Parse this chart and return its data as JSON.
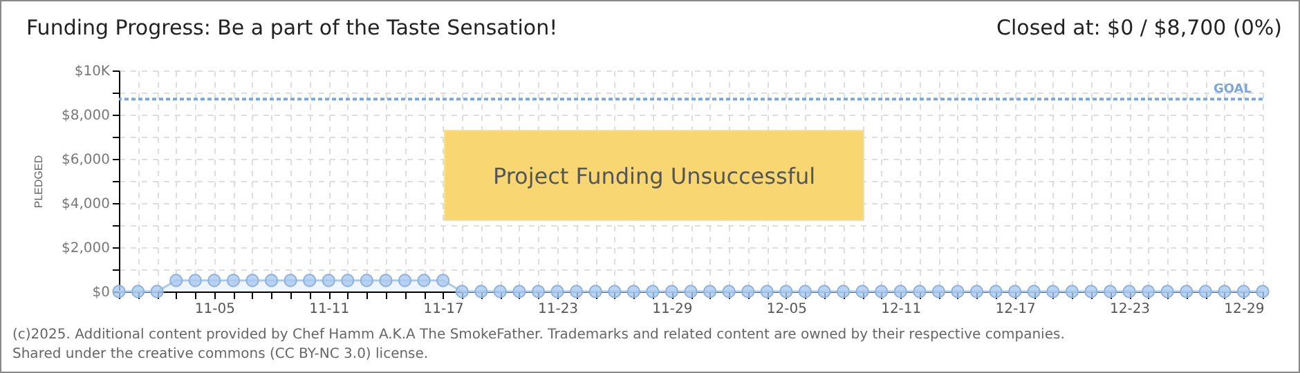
{
  "chart_data": {
    "type": "area",
    "title": "Funding Progress: Be a part of the Taste Sensation!",
    "subtitle": "Closed at:  $0 /  $8,700 (0%)",
    "ylabel": "PLEDGED",
    "annotations": [
      "Project Funding Unsuccessful",
      "(c)2025. Additional content provided by Chef Hamm A.K.A The SmokeFather. Trademarks and related content are owned by their respective companies.",
      "Shared under the creative commons (CC BY-NC 3.0) license."
    ],
    "x": [
      "--10-31",
      "--11-01",
      "--11-02",
      "--11-03",
      "--11-04",
      "--11-05",
      "--11-06",
      "--11-07",
      "--11-08",
      "--11-09",
      "--11-10",
      "--11-11",
      "--11-12",
      "--11-13",
      "--11-14",
      "--11-15",
      "--11-16",
      "--11-17",
      "--11-18",
      "--11-19",
      "--11-20",
      "--11-21",
      "--11-22",
      "--11-23",
      "--11-24",
      "--11-25",
      "--11-26",
      "--11-27",
      "--11-28",
      "--11-29",
      "--11-30",
      "--12-01",
      "--12-02",
      "--12-03",
      "--12-04",
      "--12-05",
      "--12-06",
      "--12-07",
      "--12-08",
      "--12-09",
      "--12-10",
      "--12-11",
      "--12-12",
      "--12-13",
      "--12-14",
      "--12-15",
      "--12-16",
      "--12-17",
      "--12-18",
      "--12-19",
      "--12-20",
      "--12-21",
      "--12-22",
      "--12-23",
      "--12-24",
      "--12-25",
      "--12-26",
      "--12-27",
      "--12-28",
      "--12-29",
      "--12-30"
    ],
    "series": [
      {
        "color": "#a9c9f0",
        "values": [
          0,
          0,
          0,
          500,
          500,
          500,
          500,
          500,
          500,
          500,
          500,
          500,
          500,
          500,
          500,
          500,
          500,
          500,
          0,
          0,
          0,
          0,
          0,
          0,
          0,
          0,
          0,
          0,
          0,
          0,
          0,
          0,
          0,
          0,
          0,
          0,
          0,
          0,
          0,
          0,
          0,
          0,
          0,
          0,
          0,
          0,
          0,
          0,
          0,
          0,
          0,
          0,
          0,
          0,
          0,
          0,
          0,
          0,
          0,
          0,
          0
        ]
      }
    ],
    "xlim": [
      "--10-31",
      "--12-30"
    ],
    "xticks": [
      {
        "value": "--10-31",
        "label": null
      },
      {
        "value": "--11-01",
        "label": null
      },
      {
        "value": "--11-02",
        "label": null
      },
      {
        "value": "--11-03",
        "label": null
      },
      {
        "value": "--11-04",
        "label": null
      },
      {
        "value": "--11-05",
        "label": "11-05"
      },
      {
        "value": "--11-06",
        "label": null
      },
      {
        "value": "--11-07",
        "label": null
      },
      {
        "value": "--11-08",
        "label": null
      },
      {
        "value": "--11-09",
        "label": null
      },
      {
        "value": "--11-10",
        "label": null
      },
      {
        "value": "--11-11",
        "label": "11-11"
      },
      {
        "value": "--11-12",
        "label": null
      },
      {
        "value": "--11-13",
        "label": null
      },
      {
        "value": "--11-14",
        "label": null
      },
      {
        "value": "--11-15",
        "label": null
      },
      {
        "value": "--11-16",
        "label": null
      },
      {
        "value": "--11-17",
        "label": "11-17"
      },
      {
        "value": "--11-18",
        "label": null
      },
      {
        "value": "--11-19",
        "label": null
      },
      {
        "value": "--11-20",
        "label": null
      },
      {
        "value": "--11-21",
        "label": null
      },
      {
        "value": "--11-22",
        "label": null
      },
      {
        "value": "--11-23",
        "label": "11-23"
      },
      {
        "value": "--11-24",
        "label": null
      },
      {
        "value": "--11-25",
        "label": null
      },
      {
        "value": "--11-26",
        "label": null
      },
      {
        "value": "--11-27",
        "label": null
      },
      {
        "value": "--11-28",
        "label": null
      },
      {
        "value": "--11-29",
        "label": "11-29"
      },
      {
        "value": "--11-30",
        "label": null
      },
      {
        "value": "--12-01",
        "label": null
      },
      {
        "value": "--12-02",
        "label": null
      },
      {
        "value": "--12-03",
        "label": null
      },
      {
        "value": "--12-04",
        "label": null
      },
      {
        "value": "--12-05",
        "label": "12-05"
      },
      {
        "value": "--12-06",
        "label": null
      },
      {
        "value": "--12-07",
        "label": null
      },
      {
        "value": "--12-08",
        "label": null
      },
      {
        "value": "--12-09",
        "label": null
      },
      {
        "value": "--12-10",
        "label": null
      },
      {
        "value": "--12-11",
        "label": "12-11"
      },
      {
        "value": "--12-12",
        "label": null
      },
      {
        "value": "--12-13",
        "label": null
      },
      {
        "value": "--12-14",
        "label": null
      },
      {
        "value": "--12-15",
        "label": null
      },
      {
        "value": "--12-16",
        "label": null
      },
      {
        "value": "--12-17",
        "label": "12-17"
      },
      {
        "value": "--12-18",
        "label": null
      },
      {
        "value": "--12-19",
        "label": null
      },
      {
        "value": "--12-20",
        "label": null
      },
      {
        "value": "--12-21",
        "label": null
      },
      {
        "value": "--12-22",
        "label": null
      },
      {
        "value": "--12-23",
        "label": "12-23"
      },
      {
        "value": "--12-24",
        "label": null
      },
      {
        "value": "--12-25",
        "label": null
      },
      {
        "value": "--12-26",
        "label": null
      },
      {
        "value": "--12-27",
        "label": null
      },
      {
        "value": "--12-28",
        "label": null
      },
      {
        "value": "--12-29",
        "label": "12-29"
      },
      {
        "value": "--12-30",
        "label": null
      }
    ],
    "ylim": [
      0,
      10000
    ],
    "yticks": [
      {
        "value": 0,
        "label": "$0"
      },
      {
        "value": 1000,
        "label": null
      },
      {
        "value": 2000,
        "label": "$2,000"
      },
      {
        "value": 3000,
        "label": null
      },
      {
        "value": 4000,
        "label": "$4,000"
      },
      {
        "value": 5000,
        "label": null
      },
      {
        "value": 6000,
        "label": "$6,000"
      },
      {
        "value": 7000,
        "label": null
      },
      {
        "value": 8000,
        "label": "$8,000"
      },
      {
        "value": 9000,
        "label": null
      },
      {
        "value": 10000,
        "label": "$10K"
      }
    ],
    "ref_lines": [
      {
        "axis": "y",
        "value": 8700,
        "label": "GOAL",
        "color": "#7aa6dc",
        "line_style": "dotted"
      }
    ],
    "grid": true,
    "marker": "circle"
  }
}
